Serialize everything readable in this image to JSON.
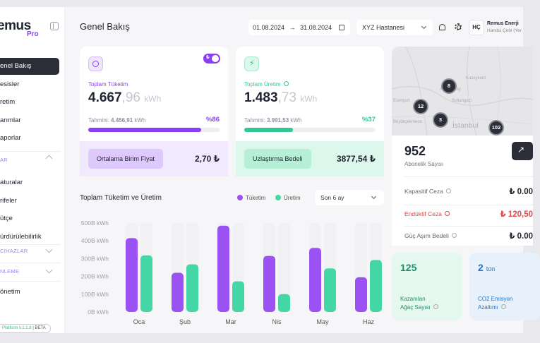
{
  "brand": {
    "name": "emus",
    "sub": "Pro",
    "version": "Platform v.1.1.8",
    "version_tag": "BETA"
  },
  "sidebar": {
    "items": [
      {
        "label": "enel Bakış",
        "active": true
      },
      {
        "label": "esisler"
      },
      {
        "label": "retim"
      },
      {
        "label": "arımlar"
      },
      {
        "label": "aporlar"
      }
    ],
    "section_1": "AR",
    "items_2": [
      {
        "label": "aturalar"
      },
      {
        "label": "rifeler"
      },
      {
        "label": "ütçe"
      },
      {
        "label": "ürdürülebilirlik"
      }
    ],
    "section_2": "CIHAZLAR",
    "section_3": "NLEME",
    "item_last": "önetim"
  },
  "header": {
    "title": "Genel Bakış",
    "date_start": "01.08.2024",
    "date_end": "31.08.2024",
    "hospital": "XYZ Hastanesi",
    "avatar_initials": "HÇ",
    "user_name": "Remus Enerji",
    "user_sub": "Handsi Çebi (Yer"
  },
  "consumption": {
    "label": "Toplam Tüketim",
    "value_int": "4.667",
    "value_dec": ",96",
    "unit": "kWh",
    "estimate_label": "Tahmini:",
    "estimate_value": "4.456,91",
    "estimate_unit": "kWh",
    "percent_label": "%86",
    "percent": 86,
    "toggle_label": "₺",
    "footer_label": "Ortalama Birim Fiyat",
    "footer_value": "2,70 ₺",
    "accent": "#8a3ff5"
  },
  "production": {
    "label": "Toplam Üretim",
    "value_int": "1.483",
    "value_dec": ",73",
    "unit": "kWh",
    "estimate_label": "Tahmini:",
    "estimate_value": "3.991,53",
    "estimate_unit": "kWh",
    "percent_label": "%37",
    "percent": 37,
    "footer_label": "Uzlaştırma Bedeli",
    "footer_value": "3877,54 ₺",
    "accent": "#2fc793"
  },
  "chart_section": {
    "title": "Toplam Tüketim ve Üretim",
    "legend_consumption": "Tüketim",
    "legend_production": "Üretim",
    "period": "Son 6 ay"
  },
  "chart_data": {
    "type": "bar",
    "categories": [
      "Oca",
      "Şub",
      "Mar",
      "Nis",
      "May",
      "Haz"
    ],
    "series": [
      {
        "name": "Tüketim",
        "color": "#9b52f2",
        "values": [
          415,
          220,
          485,
          315,
          360,
          195
        ]
      },
      {
        "name": "Üretim",
        "color": "#44d6a4",
        "values": [
          318,
          268,
          172,
          100,
          245,
          292
        ]
      }
    ],
    "yticks": [
      "0B kWh",
      "100B kWh",
      "200B kWh",
      "300B kWh",
      "400B kWh",
      "500B kWh"
    ],
    "ylim": [
      0,
      500
    ],
    "grid": false
  },
  "map": {
    "clusters": [
      "8",
      "12",
      "3",
      "102"
    ],
    "labels": [
      "Kuzeykent",
      "Arnavutköy",
      "Sultangazi",
      "Büyükçekmece",
      "Esenyurt"
    ],
    "city": "İstanbul"
  },
  "subscriptions": {
    "count": "952",
    "label": "Abonelik Sayısı",
    "rows": [
      {
        "label": "Kapasitif Ceza",
        "value": "₺ 0.00",
        "color": "#1f2430",
        "label_color": "#666666"
      },
      {
        "label": "Endüktif Ceza",
        "value": "₺ 120,50",
        "color": "#e04646",
        "label_color": "#e04646"
      },
      {
        "label": "Güç Aşım Bedeli",
        "value": "₺ 0.00",
        "color": "#1f2430",
        "label_color": "#666666"
      }
    ]
  },
  "stats": [
    {
      "value": "125",
      "unit": "",
      "label_1": "Kazanılan",
      "label_2": "Ağaç Sayısı",
      "color": "#1e8f6a",
      "bg": "#e4f8ef"
    },
    {
      "value": "2",
      "unit": "ton",
      "label_1": "CO2 Emisyon",
      "label_2": "Azaltımı",
      "color": "#2a73c9",
      "bg": "#e6f1fb"
    }
  ]
}
